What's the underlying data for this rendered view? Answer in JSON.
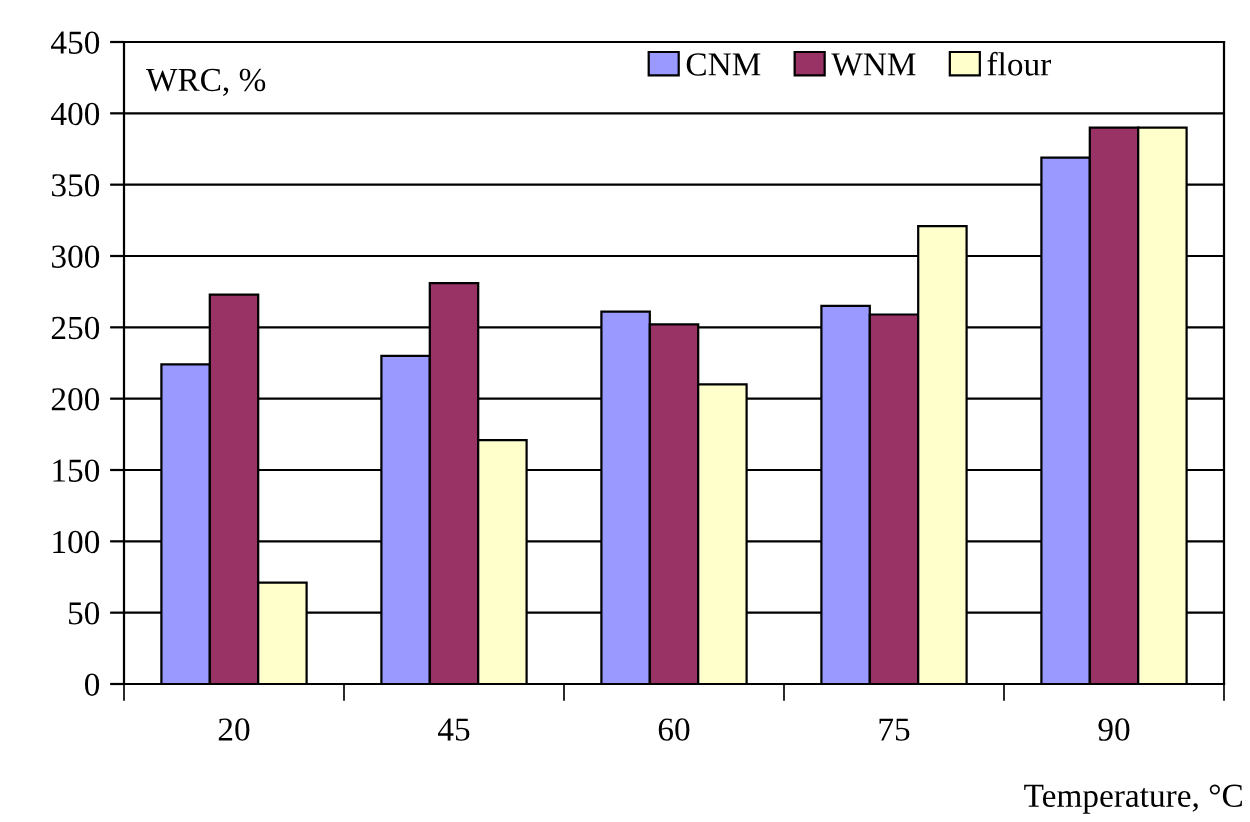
{
  "chart_data": {
    "type": "bar",
    "ylabel": "WRC, %",
    "xlabel": "Temperature, °C",
    "categories": [
      "20",
      "45",
      "60",
      "75",
      "90"
    ],
    "series": [
      {
        "name": "CNM",
        "color": "#9999ff",
        "values": [
          224,
          230,
          261,
          265,
          369
        ]
      },
      {
        "name": "WNM",
        "color": "#993366",
        "values": [
          273,
          281,
          252,
          259,
          390
        ]
      },
      {
        "name": "flour",
        "color": "#ffffcc",
        "values": [
          71,
          171,
          210,
          321,
          390
        ]
      }
    ],
    "ylim": [
      0,
      450
    ],
    "yticks": [
      0,
      50,
      100,
      150,
      200,
      250,
      300,
      350,
      400,
      450
    ],
    "grid": "y",
    "legend": "top"
  }
}
